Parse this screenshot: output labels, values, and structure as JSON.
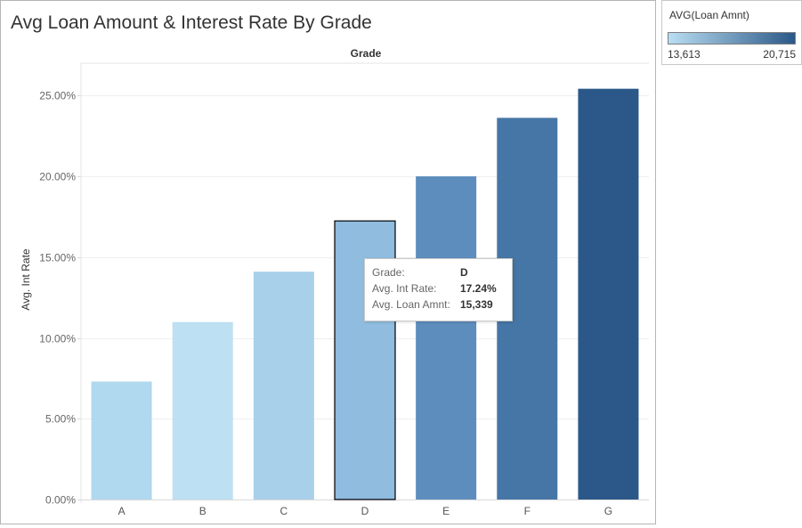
{
  "title": "Avg Loan Amount & Interest Rate By Grade",
  "column_header": "Grade",
  "legend": {
    "title": "AVG(Loan Amnt)",
    "min_label": "13,613",
    "max_label": "20,715",
    "color_low": "#b9def2",
    "color_high": "#2b5888"
  },
  "tooltip": {
    "rows": [
      {
        "label": "Grade:",
        "value": "D"
      },
      {
        "label": "Avg. Int Rate:",
        "value": "17.24%"
      },
      {
        "label": "Avg. Loan Amnt:",
        "value": "15,339"
      }
    ]
  },
  "chart_data": {
    "type": "bar",
    "title": "Avg Loan Amount & Interest Rate By Grade",
    "xlabel": "Grade",
    "ylabel": "Avg. Int Rate",
    "categories": [
      "A",
      "B",
      "C",
      "D",
      "E",
      "F",
      "G"
    ],
    "values": [
      0.073,
      0.1098,
      0.141,
      0.1724,
      0.2,
      0.2362,
      0.2542
    ],
    "colors": [
      "#b0d8ef",
      "#bde0f2",
      "#a9d0eb",
      "#8fbcdf",
      "#5d8dbd",
      "#4676a6",
      "#2b5888"
    ],
    "highlighted": "D",
    "ylim": [
      0,
      0.27
    ],
    "yticks": [
      {
        "value": 0.0,
        "label": "0.00%"
      },
      {
        "value": 0.05,
        "label": "5.00%"
      },
      {
        "value": 0.1,
        "label": "10.00%"
      },
      {
        "value": 0.15,
        "label": "15.00%"
      },
      {
        "value": 0.2,
        "label": "20.00%"
      },
      {
        "value": 0.25,
        "label": "25.00%"
      }
    ],
    "grid": true,
    "legend_position": "top-right"
  }
}
